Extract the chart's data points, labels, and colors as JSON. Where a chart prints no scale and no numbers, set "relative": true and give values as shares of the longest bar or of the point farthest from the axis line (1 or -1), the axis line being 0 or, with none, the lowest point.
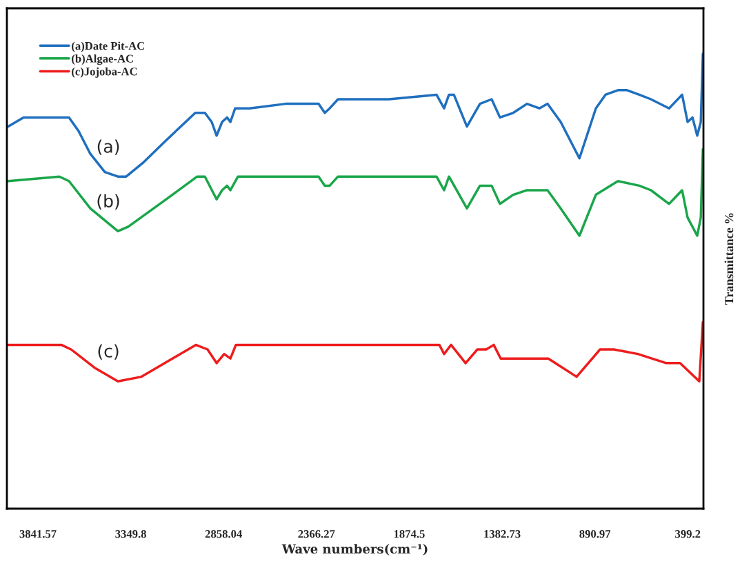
{
  "chart_data": {
    "type": "line",
    "relative": true,
    "xlabel": "Wave numbers(cm⁻¹)",
    "ylabel": "Transmittance %",
    "xlim": [
      4006,
      316
    ],
    "xticks": [
      3841.57,
      3349.8,
      2858.04,
      2366.27,
      1874.5,
      1382.73,
      890.97,
      399.2
    ],
    "legend": "top left",
    "grid": false,
    "marker": "none",
    "line_style": "solid",
    "tick_labels": "x",
    "annotations": [
      "(a)",
      "(b)",
      "(c)"
    ],
    "series": [
      {
        "name": "(a)Date Pit-AC",
        "color": "#1f6fbf",
        "x": [
          3999,
          3918,
          3739,
          3677,
          3626,
          3564,
          3487,
          3418,
          3374,
          3286,
          3162,
          3008,
          2957,
          2921,
          2895,
          2866,
          2840,
          2822,
          2797,
          2720,
          2530,
          2355,
          2322,
          2296,
          2252,
          2106,
          1982,
          1730,
          1690,
          1664,
          1638,
          1569,
          1500,
          1438,
          1394,
          1324,
          1251,
          1185,
          1142,
          1072,
          973,
          886,
          835,
          769,
          721,
          656,
          594,
          498,
          429,
          400,
          374,
          349,
          330,
          319
        ],
        "values": [
          0.84,
          0.86,
          0.86,
          0.86,
          0.83,
          0.78,
          0.74,
          0.73,
          0.73,
          0.76,
          0.81,
          0.87,
          0.87,
          0.85,
          0.82,
          0.85,
          0.86,
          0.85,
          0.88,
          0.88,
          0.89,
          0.89,
          0.87,
          0.88,
          0.9,
          0.9,
          0.9,
          0.91,
          0.88,
          0.91,
          0.91,
          0.84,
          0.89,
          0.9,
          0.86,
          0.87,
          0.89,
          0.88,
          0.89,
          0.85,
          0.77,
          0.88,
          0.91,
          0.92,
          0.92,
          0.91,
          0.9,
          0.88,
          0.91,
          0.85,
          0.86,
          0.82,
          0.85,
          1.0
        ]
      },
      {
        "name": "(b)Algae-AC",
        "color": "#1aa64a",
        "x": [
          3999,
          3728,
          3677,
          3564,
          3418,
          3363,
          3162,
          2998,
          2957,
          2895,
          2866,
          2840,
          2822,
          2782,
          2355,
          2322,
          2296,
          2252,
          2106,
          1730,
          1690,
          1664,
          1569,
          1500,
          1438,
          1394,
          1324,
          1251,
          1142,
          1072,
          973,
          886,
          769,
          656,
          594,
          498,
          429,
          400,
          349,
          330,
          319
        ],
        "values": [
          0.72,
          0.73,
          0.72,
          0.66,
          0.61,
          0.62,
          0.68,
          0.73,
          0.73,
          0.68,
          0.7,
          0.71,
          0.7,
          0.73,
          0.73,
          0.71,
          0.71,
          0.73,
          0.73,
          0.73,
          0.7,
          0.73,
          0.66,
          0.71,
          0.71,
          0.67,
          0.69,
          0.7,
          0.7,
          0.66,
          0.6,
          0.69,
          0.72,
          0.71,
          0.7,
          0.67,
          0.7,
          0.64,
          0.6,
          0.64,
          0.79
        ]
      },
      {
        "name": "(c)Jojoba-AC",
        "color": "#ee1c1c",
        "x": [
          3999,
          3717,
          3666,
          3542,
          3418,
          3293,
          3005,
          2943,
          2895,
          2855,
          2822,
          2793,
          2292,
          1715,
          1690,
          1653,
          1576,
          1514,
          1467,
          1427,
          1390,
          1291,
          1138,
          1101,
          988,
          864,
          791,
          663,
          513,
          440,
          389,
          338,
          319
        ],
        "values": [
          0.36,
          0.36,
          0.35,
          0.31,
          0.28,
          0.29,
          0.36,
          0.35,
          0.32,
          0.34,
          0.33,
          0.36,
          0.36,
          0.36,
          0.34,
          0.36,
          0.32,
          0.35,
          0.35,
          0.36,
          0.33,
          0.33,
          0.33,
          0.32,
          0.29,
          0.35,
          0.35,
          0.34,
          0.32,
          0.32,
          0.3,
          0.28,
          0.41
        ]
      }
    ]
  }
}
